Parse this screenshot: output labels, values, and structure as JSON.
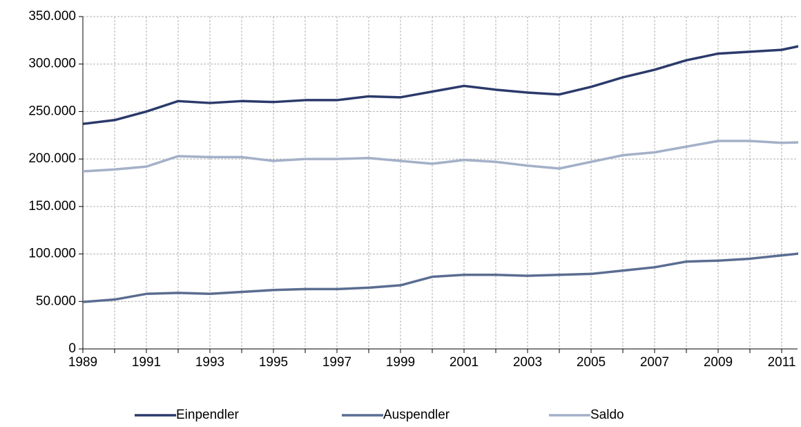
{
  "chart_data": {
    "type": "line",
    "x": [
      1989,
      1990,
      1991,
      1992,
      1993,
      1994,
      1995,
      1996,
      1997,
      1998,
      1999,
      2000,
      2001,
      2002,
      2003,
      2004,
      2005,
      2006,
      2007,
      2008,
      2009,
      2010,
      2011,
      2012
    ],
    "series": [
      {
        "name": "Einpendler",
        "color": "#2b3a6b",
        "values": [
          237000,
          241000,
          250000,
          261000,
          259000,
          261000,
          260000,
          262000,
          262000,
          266000,
          265000,
          271000,
          277000,
          273000,
          270000,
          268000,
          276000,
          286000,
          294000,
          304000,
          311000,
          313000,
          315000,
          322000
        ]
      },
      {
        "name": "Auspendler",
        "color": "#5a6d91",
        "values": [
          49500,
          52000,
          58000,
          59000,
          58000,
          60000,
          62000,
          63000,
          63000,
          64500,
          67000,
          76000,
          78000,
          78000,
          77000,
          78000,
          79000,
          82500,
          86000,
          92000,
          93000,
          95000,
          98500,
          102000
        ]
      },
      {
        "name": "Saldo",
        "color": "#a3b0c8",
        "values": [
          187000,
          189000,
          192000,
          203000,
          202000,
          202000,
          198000,
          200000,
          200000,
          201000,
          198000,
          195000,
          199000,
          197000,
          193000,
          190000,
          197000,
          204000,
          207000,
          213000,
          219000,
          219000,
          217000,
          218000
        ]
      }
    ],
    "xlim": [
      1989,
      2011.5
    ],
    "xticks": [
      1989,
      1991,
      1993,
      1995,
      1997,
      1999,
      2001,
      2003,
      2005,
      2007,
      2009,
      2011
    ],
    "x_minor_ticks": [
      1990,
      1992,
      1994,
      1996,
      1998,
      2000,
      2002,
      2004,
      2006,
      2008,
      2010
    ],
    "ylim": [
      0,
      350000
    ],
    "yticks": [
      {
        "value": 0,
        "label": "0"
      },
      {
        "value": 50000,
        "label": "50.000"
      },
      {
        "value": 100000,
        "label": "100.000"
      },
      {
        "value": 150000,
        "label": "150.000"
      },
      {
        "value": 200000,
        "label": "200.000"
      },
      {
        "value": 250000,
        "label": "250.000"
      },
      {
        "value": 300000,
        "label": "300.000"
      },
      {
        "value": 350000,
        "label": "350.000"
      }
    ],
    "grid": true
  }
}
